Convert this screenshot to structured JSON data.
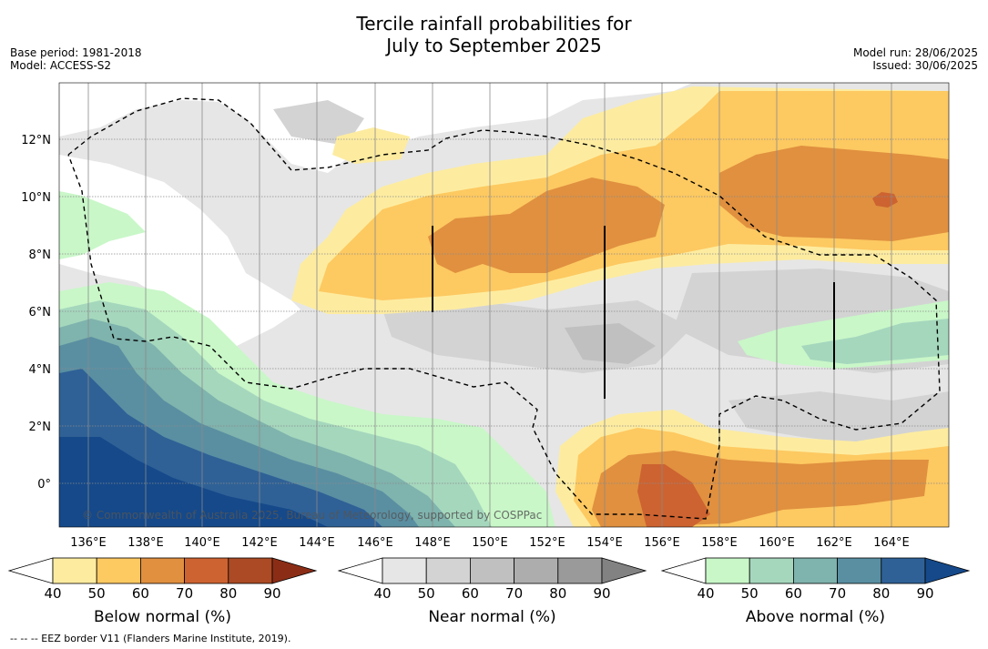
{
  "header": {
    "title_line1": "Tercile rainfall probabilities for",
    "title_line2": "July to September 2025",
    "base_period": "Base period: 1981-2018",
    "model": "Model: ACCESS-S2",
    "model_run": "Model run: 28/06/2025",
    "issued": "Issued: 30/06/2025"
  },
  "map": {
    "copyright": "© Commonwealth of Australia 2025, Bureau of Meteorology, supported by COSPPac",
    "lon_labels": [
      "136°E",
      "138°E",
      "140°E",
      "142°E",
      "144°E",
      "146°E",
      "148°E",
      "150°E",
      "152°E",
      "154°E",
      "156°E",
      "158°E",
      "160°E",
      "162°E",
      "164°E"
    ],
    "lat_labels": [
      "12°N",
      "10°N",
      "8°N",
      "6°N",
      "4°N",
      "2°N",
      "0°"
    ]
  },
  "colorbars": [
    {
      "label": "Below normal (%)",
      "ticks": [
        "40",
        "50",
        "60",
        "70",
        "80",
        "90"
      ],
      "colors": [
        "#ffffff",
        "#fdeca0",
        "#fdc961",
        "#e0903f",
        "#cd6331",
        "#ab4a24",
        "#8b2d16"
      ]
    },
    {
      "label": "Near normal (%)",
      "ticks": [
        "40",
        "50",
        "60",
        "70",
        "80",
        "90"
      ],
      "colors": [
        "#ffffff",
        "#e6e6e6",
        "#d3d3d3",
        "#c0c0c0",
        "#adadad",
        "#9a9a9a",
        "#828282"
      ]
    },
    {
      "label": "Above normal (%)",
      "ticks": [
        "40",
        "50",
        "60",
        "70",
        "80",
        "90"
      ],
      "colors": [
        "#ffffff",
        "#c9f7c8",
        "#a5d7bd",
        "#7fb3ad",
        "#5a8fa2",
        "#2f6196",
        "#15498a"
      ]
    }
  ],
  "footer": "--  --  -- EEZ border V11 (Flanders Marine Institute, 2019)."
}
